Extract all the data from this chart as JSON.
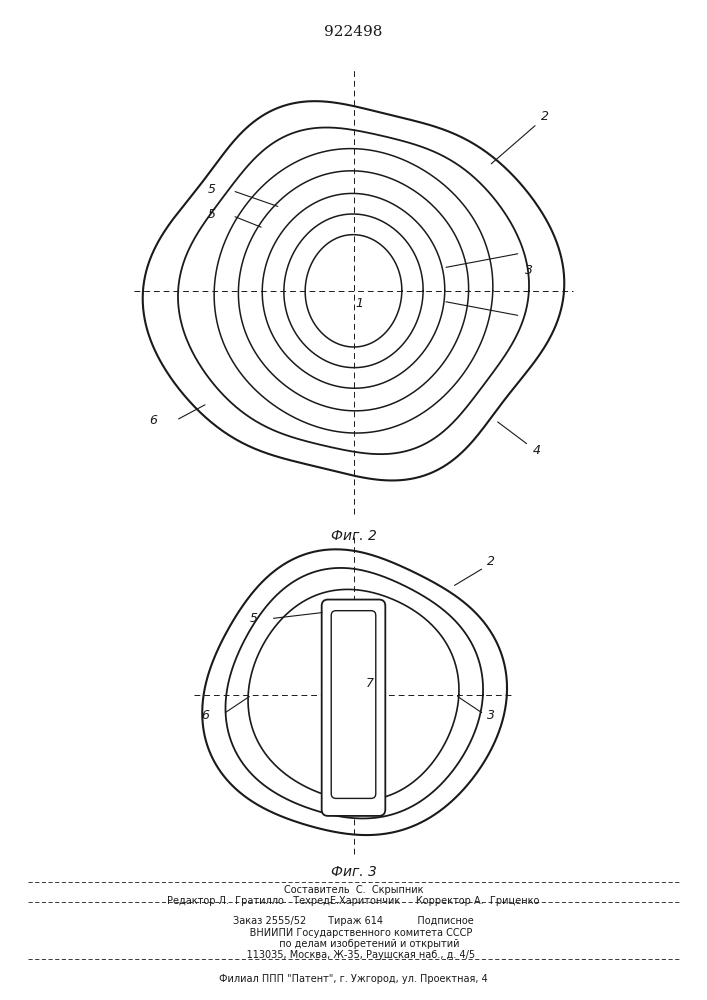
{
  "title": "922498",
  "fig2_label": "Фиг. 2",
  "fig3_label": "Фиг. 3",
  "line_color": "#1a1a1a",
  "footer_lines": [
    "Составитель  С.  Скрыпник",
    "Редактор Л.  Гратилло   ТехредЕ.Харитончик     Корректор А.  Гриценко",
    "Заказ 2555/52       Тираж 614           Подписное",
    "     ВНИИПИ Государственного комитета СССР",
    "          по делам изобретений и открытий",
    "     113035, Москва, Ж-35, Раушская наб., д. 4/5",
    "Филиал ППП \"Патент\", г. Ужгород, ул. Проектная, 4"
  ]
}
